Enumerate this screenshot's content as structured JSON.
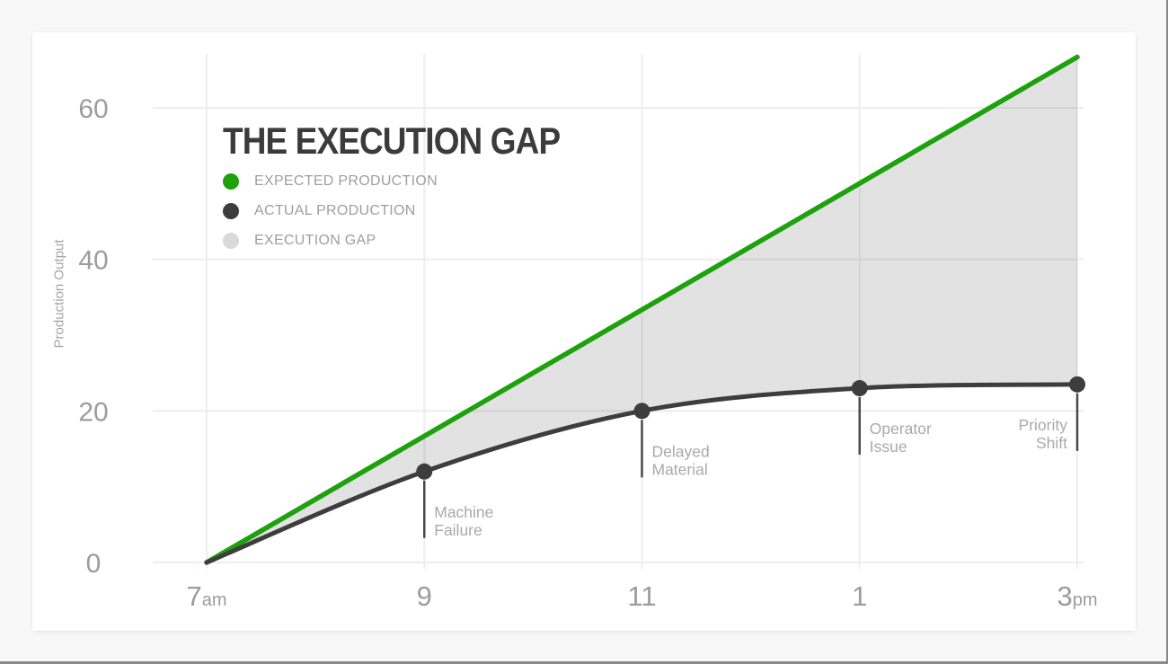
{
  "window": {
    "page_background": "#f8f8f8",
    "frame_edge_color": "#8b8b8b",
    "card_background": "#ffffff"
  },
  "chart_data": {
    "type": "line",
    "title": "THE EXECUTION GAP",
    "ylabel": "Production Output",
    "xlabel": "",
    "x_hours": [
      7,
      9,
      11,
      13,
      15
    ],
    "xticks": [
      {
        "label": "7",
        "suffix": "am"
      },
      {
        "label": "9",
        "suffix": ""
      },
      {
        "label": "11",
        "suffix": ""
      },
      {
        "label": "1",
        "suffix": ""
      },
      {
        "label": "3",
        "suffix": "pm"
      }
    ],
    "yticks": [
      0,
      20,
      40,
      60
    ],
    "ylim": [
      0,
      67
    ],
    "grid": true,
    "legend_position": "top-left-inside",
    "series": [
      {
        "name": "EXPECTED PRODUCTION",
        "shape": "straight",
        "color": "#1da10c",
        "values": [
          0,
          16.7,
          33.3,
          50,
          66.7
        ],
        "markers": false
      },
      {
        "name": "ACTUAL PRODUCTION",
        "shape": "smooth",
        "color": "#3d3d3d",
        "values": [
          0,
          12,
          20,
          23,
          23.5
        ],
        "markers": true
      }
    ],
    "gap_area": {
      "name": "EXECUTION GAP",
      "between": [
        "EXPECTED PRODUCTION",
        "ACTUAL PRODUCTION"
      ],
      "color": "#e2e2e2"
    },
    "legend": [
      {
        "label": "EXPECTED PRODUCTION",
        "color": "#1da10c"
      },
      {
        "label": "ACTUAL PRODUCTION",
        "color": "#3d3d3d"
      },
      {
        "label": "EXECUTION GAP",
        "color": "#d9d9d9"
      }
    ],
    "annotations": [
      {
        "hour": 9,
        "value": 12,
        "lines": [
          "Machine",
          "Failure"
        ],
        "side": "right"
      },
      {
        "hour": 11,
        "value": 20,
        "lines": [
          "Delayed",
          "Material"
        ],
        "side": "right"
      },
      {
        "hour": 13,
        "value": 23,
        "lines": [
          "Operator",
          "Issue"
        ],
        "side": "right"
      },
      {
        "hour": 15,
        "value": 23.5,
        "lines": [
          "Priority",
          "Shift"
        ],
        "side": "left"
      }
    ],
    "colors": {
      "grid": "#ededed",
      "tick_text": "#9c9c9c",
      "annotation_text": "#a9a9a9",
      "annotation_line": "#4a4a4a",
      "title_text": "#3b3b3b",
      "legend_text": "#9e9e9e"
    }
  }
}
